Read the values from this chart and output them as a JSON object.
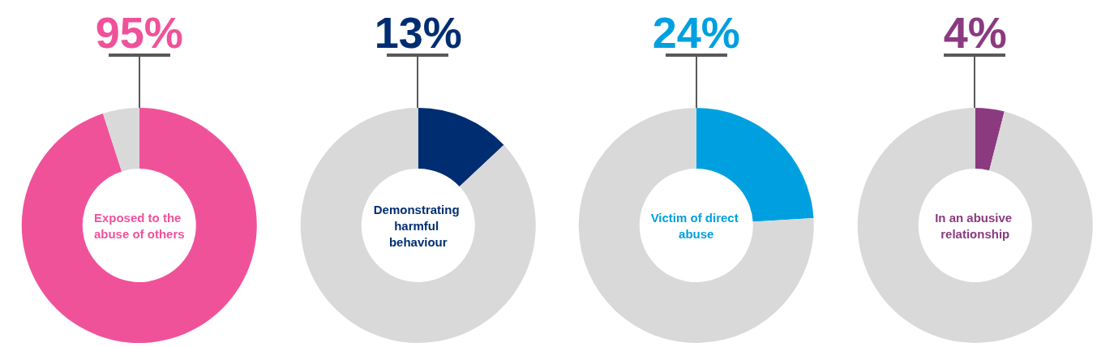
{
  "chart_data": [
    {
      "type": "donut",
      "title": "Exposed to the abuse of others",
      "categories": [
        null,
        null
      ],
      "values": [
        95,
        5
      ],
      "colors": [
        "#f0529a",
        "#d9d9d9"
      ],
      "value_labels": [
        "95%",
        null
      ]
    },
    {
      "type": "donut",
      "title": "Demonstrating harmful behaviour",
      "categories": [
        null,
        null
      ],
      "values": [
        13,
        87
      ],
      "colors": [
        "#002d72",
        "#d9d9d9"
      ],
      "value_labels": [
        "13%",
        null
      ]
    },
    {
      "type": "donut",
      "title": "Victim of direct abuse",
      "categories": [
        null,
        null
      ],
      "values": [
        24,
        76
      ],
      "colors": [
        "#00a0e0",
        "#d9d9d9"
      ],
      "value_labels": [
        "24%",
        null
      ]
    },
    {
      "type": "donut",
      "title": "In an abusive relationship",
      "categories": [
        null,
        null
      ],
      "values": [
        4,
        96
      ],
      "colors": [
        "#8b3a80",
        "#d9d9d9"
      ],
      "value_labels": [
        "4%",
        null
      ]
    }
  ]
}
